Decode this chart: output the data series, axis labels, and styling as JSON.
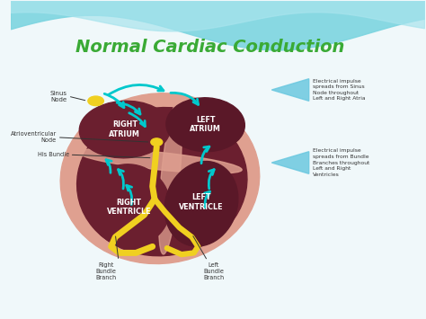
{
  "title": "Normal Cardiac Conduction",
  "title_color": "#3aaa35",
  "title_fontsize": 14,
  "bg_color": "#f0f8fa",
  "wave_color1": "#7dd5e0",
  "wave_color2": "#a8e4ed",
  "heart_outer_color": "#dfa090",
  "heart_inner_color": "#6b1f2f",
  "node_color": "#f0d020",
  "arrow_color": "#00c8cc",
  "bundle_color": "#f0d020",
  "label_color": "#ffffff",
  "ann_color": "#333333",
  "blue_tri_color": "#6bc8e0",
  "labels": {
    "right_atrium": "RIGHT\nATRIUM",
    "left_atrium": "LEFT\nATRIUM",
    "right_ventricle": "RIGHT\nVENTRICLE",
    "left_ventricle": "LEFT\nVENTRICLE",
    "sinus_node": "Sinus\nNode",
    "av_node": "Atrioventricular\nNode",
    "his_bundle": "His Bundle",
    "right_bundle": "Right\nBundle\nBranch",
    "left_bundle": "Left\nBundle\nBranch",
    "impulse1": "Electrical impulse\nspreads from Sinus\nNode throughout\nLeft and Right Atria",
    "impulse2": "Electrical impulse\nspreads from Bundle\nBranches throughout\nLeft and Right\nVentricles"
  }
}
